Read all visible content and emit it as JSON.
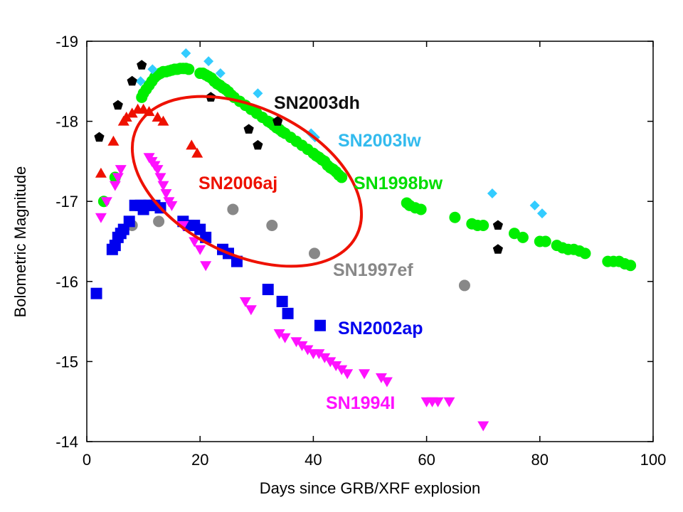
{
  "chart_data": {
    "type": "scatter",
    "xlabel": "Days since GRB/XRF explosion",
    "ylabel": "Bolometric Magnitude",
    "xlim": [
      0,
      100
    ],
    "ylim": [
      -14,
      -19
    ],
    "y_axis_inverted": true,
    "x_ticks": [
      "0",
      "20",
      "40",
      "60",
      "80",
      "100"
    ],
    "y_ticks": [
      "-19",
      "-18",
      "-17",
      "-16",
      "-15",
      "-14"
    ],
    "grid": false,
    "series": [
      {
        "name": "SN2003dh",
        "marker": "pentagon",
        "color": "#000000",
        "x": [
          2.2,
          5.5,
          8.0,
          9.7,
          21.9,
          28.6,
          30.2,
          33.7,
          72.6,
          72.6
        ],
        "y": [
          -17.8,
          -18.2,
          -18.5,
          -18.7,
          -18.3,
          -17.9,
          -17.7,
          -18.0,
          -16.7,
          -16.4
        ]
      },
      {
        "name": "SN2003lw",
        "marker": "diamond",
        "color": "#33ccff",
        "x": [
          9.5,
          11.6,
          17.5,
          21.5,
          23.6,
          30.2,
          39.6,
          40.3,
          71.6,
          79.1,
          80.4
        ],
        "y": [
          -18.5,
          -18.65,
          -18.85,
          -18.75,
          -18.6,
          -18.35,
          -17.85,
          -17.8,
          -17.1,
          -16.95,
          -16.85
        ]
      },
      {
        "name": "SN1998bw",
        "marker": "circle",
        "color": "#00ee00",
        "x": [
          3.0,
          5.0,
          9.7,
          10.0,
          10.5,
          11.0,
          11.5,
          12.0,
          12.5,
          13.0,
          13.5,
          14.0,
          14.5,
          15.0,
          15.5,
          16.0,
          16.5,
          17.0,
          17.5,
          18.0,
          20.0,
          20.5,
          21.0,
          21.5,
          22.0,
          22.5,
          23.0,
          23.5,
          24.0,
          24.5,
          25.0,
          25.5,
          26.0,
          27.0,
          28.0,
          29.0,
          30.0,
          31.0,
          32.0,
          32.5,
          33.0,
          33.5,
          34.0,
          34.5,
          35.0,
          36.0,
          37.0,
          38.0,
          39.0,
          40.0,
          40.5,
          41.0,
          41.5,
          42.0,
          42.5,
          43.0,
          43.5,
          44.0,
          44.5,
          45.0,
          56.5,
          57.0,
          58.0,
          59.0,
          65.0,
          68.0,
          69.0,
          70.0,
          75.5,
          77.0,
          80.0,
          81.0,
          83.0,
          84.0,
          85.0,
          86.0,
          87.0,
          88.0,
          92.0,
          93.0,
          94.0,
          95.0,
          96.0
        ],
        "y": [
          -17.0,
          -17.3,
          -18.3,
          -18.35,
          -18.4,
          -18.45,
          -18.5,
          -18.55,
          -18.58,
          -18.6,
          -18.62,
          -18.62,
          -18.63,
          -18.64,
          -18.65,
          -18.65,
          -18.66,
          -18.66,
          -18.66,
          -18.65,
          -18.6,
          -18.6,
          -18.58,
          -18.56,
          -18.54,
          -18.5,
          -18.47,
          -18.45,
          -18.42,
          -18.4,
          -18.37,
          -18.33,
          -18.3,
          -18.25,
          -18.2,
          -18.15,
          -18.1,
          -18.05,
          -18.0,
          -17.98,
          -17.95,
          -17.92,
          -17.9,
          -17.87,
          -17.85,
          -17.8,
          -17.75,
          -17.7,
          -17.65,
          -17.6,
          -17.57,
          -17.55,
          -17.52,
          -17.5,
          -17.45,
          -17.42,
          -17.4,
          -17.37,
          -17.33,
          -17.3,
          -16.98,
          -16.95,
          -16.92,
          -16.9,
          -16.8,
          -16.72,
          -16.7,
          -16.7,
          -16.6,
          -16.55,
          -16.5,
          -16.5,
          -16.45,
          -16.42,
          -16.4,
          -16.4,
          -16.38,
          -16.35,
          -16.25,
          -16.25,
          -16.25,
          -16.22,
          -16.2
        ]
      },
      {
        "name": "SN2006aj",
        "marker": "triangle-up",
        "color": "#ee1100",
        "x": [
          2.5,
          4.7,
          6.5,
          7.0,
          8.0,
          9.0,
          10.0,
          11.0,
          12.5,
          13.5,
          18.5,
          19.5
        ],
        "y": [
          -17.35,
          -17.75,
          -18.0,
          -18.05,
          -18.1,
          -18.15,
          -18.15,
          -18.12,
          -18.05,
          -18.0,
          -17.7,
          -17.6
        ]
      },
      {
        "name": "SN1997ef",
        "marker": "circle",
        "color": "#888888",
        "x": [
          8.0,
          12.7,
          25.8,
          32.7,
          40.2,
          66.7
        ],
        "y": [
          -16.7,
          -16.75,
          -16.9,
          -16.7,
          -16.35,
          -15.95
        ]
      },
      {
        "name": "SN2002ap",
        "marker": "square",
        "color": "#0000ee",
        "x": [
          1.7,
          4.5,
          5.0,
          5.5,
          6.0,
          6.5,
          7.5,
          8.5,
          9.5,
          10.0,
          10.5,
          11.0,
          12.0,
          13.0,
          17.0,
          18.0,
          19.0,
          20.0,
          21.0,
          24.0,
          25.0,
          26.5,
          32.0,
          34.5,
          35.5,
          41.2
        ],
        "y": [
          -15.85,
          -16.4,
          -16.45,
          -16.55,
          -16.6,
          -16.65,
          -16.75,
          -16.95,
          -16.95,
          -16.9,
          -16.95,
          -16.95,
          -16.95,
          -16.92,
          -16.75,
          -16.7,
          -16.7,
          -16.65,
          -16.55,
          -16.4,
          -16.35,
          -16.25,
          -15.9,
          -15.75,
          -15.6,
          -15.45
        ]
      },
      {
        "name": "SN1994I",
        "marker": "triangle-down",
        "color": "#ff11ff",
        "x": [
          2.5,
          3.5,
          5.0,
          5.5,
          6.0,
          11.0,
          11.5,
          12.0,
          12.5,
          13.0,
          13.5,
          14.0,
          14.5,
          15.0,
          17.0,
          19.0,
          20.0,
          21.0,
          28.0,
          29.0,
          34.0,
          35.0,
          37.0,
          38.0,
          39.0,
          40.0,
          41.0,
          42.0,
          43.0,
          44.0,
          45.0,
          46.0,
          49.0,
          52.0,
          53.0,
          60.0,
          61.0,
          62.0,
          64.0,
          70.0
        ],
        "y": [
          -16.8,
          -17.0,
          -17.2,
          -17.3,
          -17.4,
          -17.55,
          -17.5,
          -17.45,
          -17.4,
          -17.3,
          -17.2,
          -17.1,
          -17.0,
          -16.95,
          -16.7,
          -16.5,
          -16.4,
          -16.2,
          -15.75,
          -15.65,
          -15.35,
          -15.3,
          -15.25,
          -15.2,
          -15.15,
          -15.1,
          -15.1,
          -15.05,
          -15.0,
          -14.95,
          -14.9,
          -14.85,
          -14.85,
          -14.8,
          -14.75,
          -14.5,
          -14.5,
          -14.5,
          -14.5,
          -14.2
        ]
      }
    ],
    "annotations": [
      {
        "text": "SN2003dh",
        "color": "#111111"
      },
      {
        "text": "SN2003lw",
        "color": "#33bbee"
      },
      {
        "text": "SN2006aj",
        "color": "#ee1100"
      },
      {
        "text": "SN1998bw",
        "color": "#00dd00"
      },
      {
        "text": "SN1997ef",
        "color": "#888888"
      },
      {
        "text": "SN2002ap",
        "color": "#0000ee"
      },
      {
        "text": "SN1994I",
        "color": "#ff11ff"
      }
    ],
    "ellipse_color": "#ee1100"
  }
}
